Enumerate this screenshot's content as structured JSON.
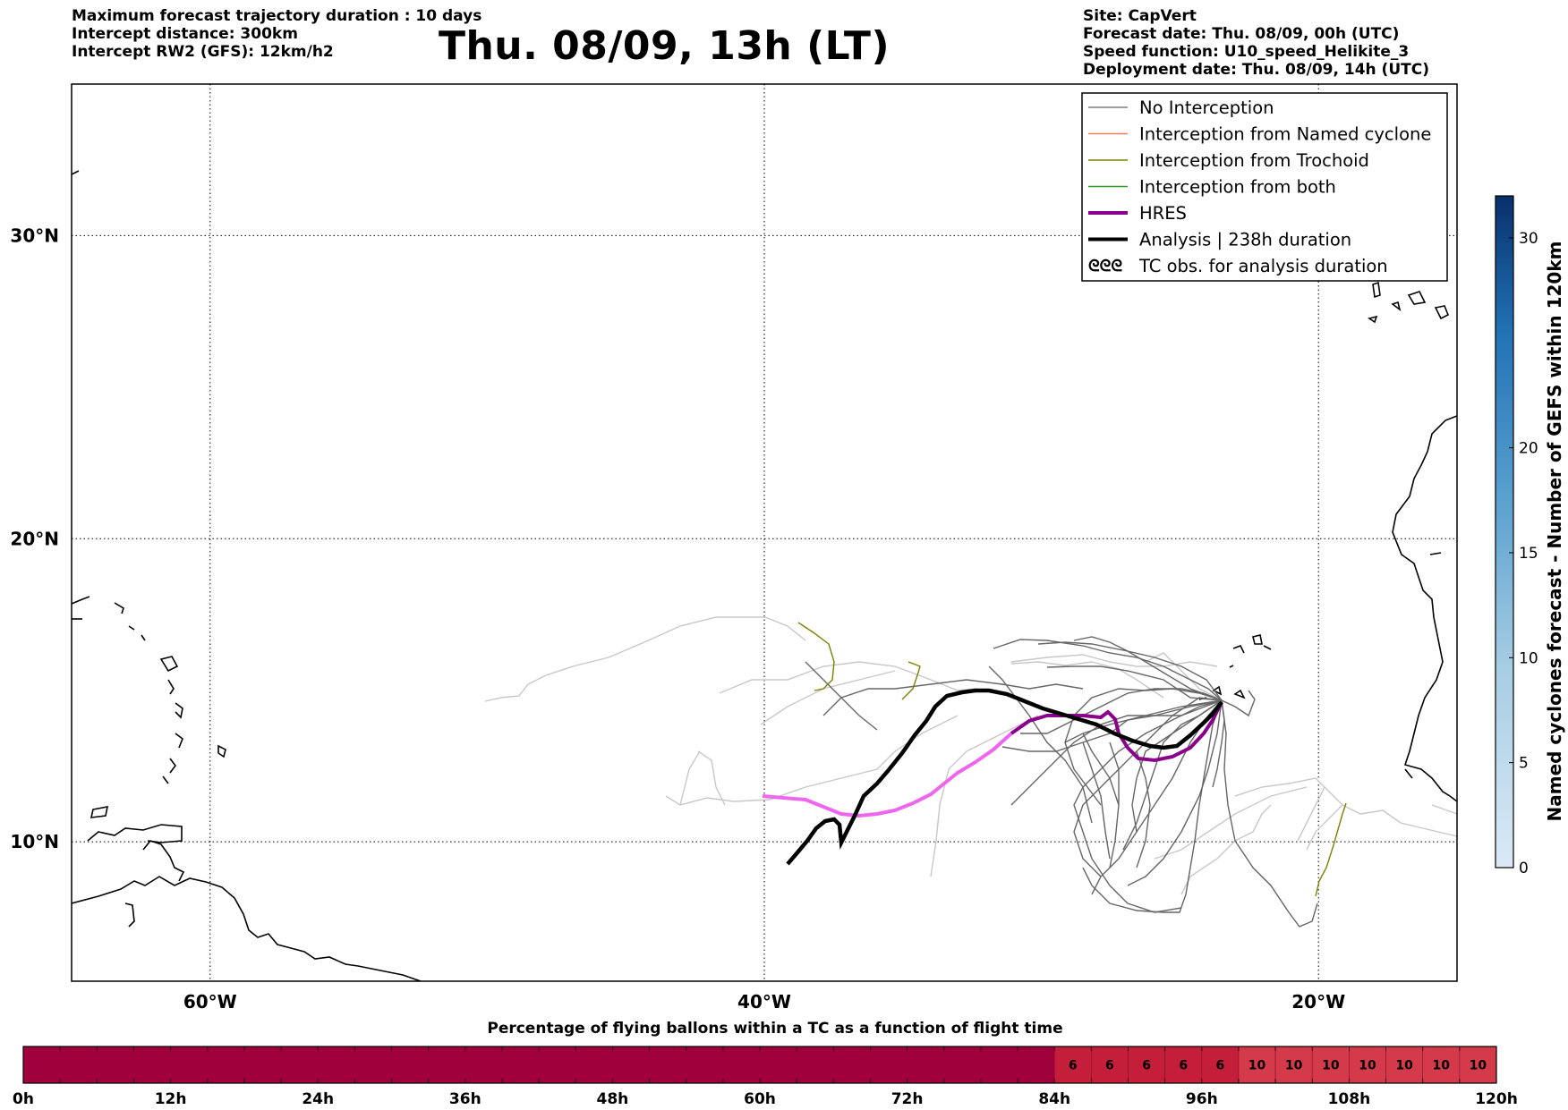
{
  "header_left": [
    "Maximum forecast trajectory duration : 10 days",
    "Intercept distance: 300km",
    "Intercept RW2 (GFS):  12km/h2"
  ],
  "title": "Thu. 08/09, 13h (LT)",
  "header_right": [
    "Site: CapVert",
    "Forecast date: Thu. 08/09, 00h (UTC)",
    "Speed function: U10_speed_Helikite_3",
    "Deployment date: Thu. 08/09, 14h (UTC)"
  ],
  "map": {
    "lon_range": [
      -65,
      -15
    ],
    "lat_range": [
      5.4,
      35
    ],
    "lon_ticks": [
      {
        "value": -60,
        "label": "60°W"
      },
      {
        "value": -40,
        "label": "40°W"
      },
      {
        "value": -20,
        "label": "20°W"
      }
    ],
    "lat_ticks": [
      {
        "value": 10,
        "label": "10°N"
      },
      {
        "value": 20,
        "label": "20°N"
      },
      {
        "value": 30,
        "label": "30°N"
      }
    ]
  },
  "legend": [
    {
      "label": "No Interception",
      "color": "#808080"
    },
    {
      "label": "Interception from Named cyclone",
      "color": "#ff7f50"
    },
    {
      "label": "Interception from Trochoid",
      "color": "#808000"
    },
    {
      "label": "Interception from both",
      "color": "#2ca02c"
    },
    {
      "label": "HRES",
      "color": "#8b008b"
    },
    {
      "label": "Analysis | 238h duration",
      "color": "#000000"
    },
    {
      "label": "TC obs. for analysis duration",
      "color": "#000000",
      "symbol": "ᘓᘓᘓ"
    }
  ],
  "colorbar": {
    "label": "Named cyclones forecast - Number of GEFS within 120km",
    "ticks": [
      0,
      5,
      10,
      15,
      20,
      30
    ],
    "max": 32
  },
  "bottom_bar": {
    "title": "Percentage of flying ballons within a TC as a function of flight time",
    "ticks": [
      "0h",
      "12h",
      "24h",
      "36h",
      "48h",
      "60h",
      "72h",
      "84h",
      "96h",
      "108h",
      "120h"
    ],
    "cells": [
      {
        "from_h": 84,
        "to_h": 99,
        "value": 6,
        "count": 5
      },
      {
        "from_h": 99,
        "to_h": 120,
        "value": 10,
        "count": 7
      }
    ],
    "colors": {
      "zero": "#a0003b",
      "six": "#c41e3a",
      "ten": "#d43a4a"
    }
  }
}
